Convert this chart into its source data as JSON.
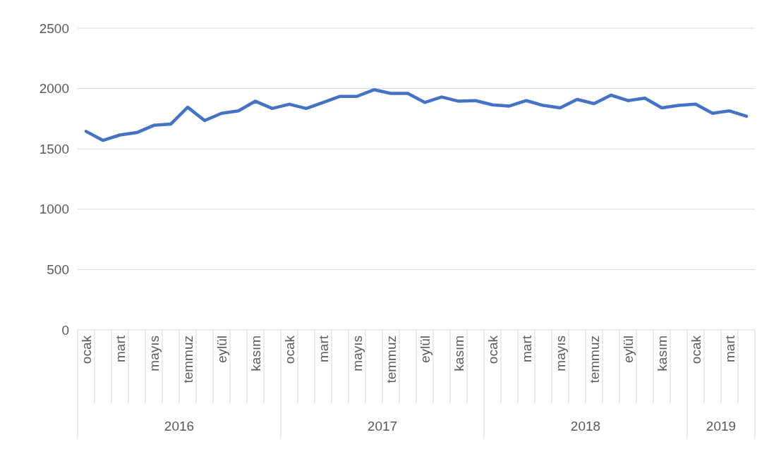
{
  "chart_data": {
    "type": "line",
    "categories": [
      "ocak",
      null,
      "mart",
      null,
      "mayıs",
      null,
      "temmuz",
      null,
      "eylül",
      null,
      "kasım",
      null,
      "ocak",
      null,
      "mart",
      null,
      "mayıs",
      null,
      "temmuz",
      null,
      "eylül",
      null,
      "kasım",
      null,
      "ocak",
      null,
      "mart",
      null,
      "mayıs",
      null,
      "temmuz",
      null,
      "eylül",
      null,
      "kasım",
      null,
      "ocak",
      null,
      "mart",
      null
    ],
    "series": [
      {
        "color": "#4472c4",
        "values": [
          1645,
          1570,
          1615,
          1635,
          1695,
          1705,
          1845,
          1735,
          1795,
          1815,
          1895,
          1835,
          1870,
          1835,
          1885,
          1935,
          1935,
          1990,
          1960,
          1960,
          1885,
          1930,
          1895,
          1900,
          1865,
          1855,
          1900,
          1860,
          1840,
          1910,
          1875,
          1945,
          1900,
          1920,
          1840,
          1860,
          1870,
          1795,
          1815,
          1770
        ]
      }
    ],
    "ylim": [
      0,
      2500
    ],
    "yticks": [
      0,
      500,
      1000,
      1500,
      2000,
      2500
    ],
    "grid": "y",
    "line_style": "solid",
    "marker": "none",
    "annotations": [
      "2016",
      "2017",
      "2018",
      "2019"
    ]
  }
}
